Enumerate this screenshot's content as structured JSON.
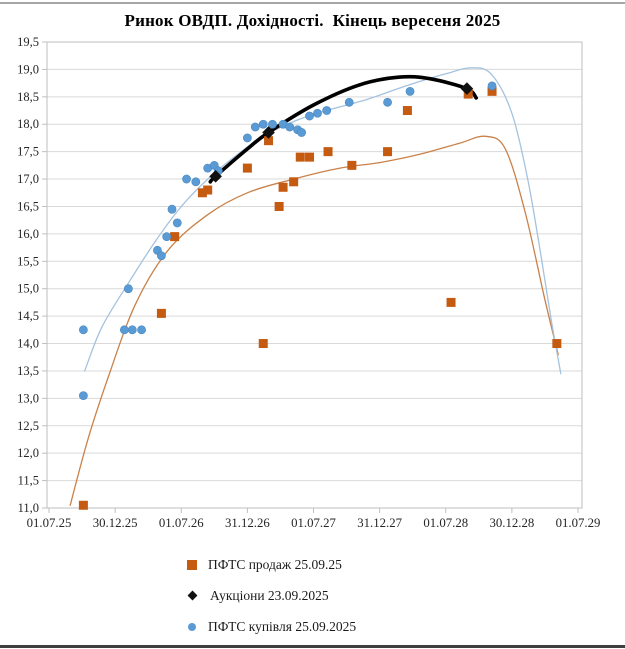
{
  "chart_data": {
    "type": "scatter",
    "title": "Ринок ОВДП. Дохідності.  Кінець вересеня 2025",
    "grid": "horizontal",
    "legend_position": "bottom-left",
    "x_axis": {
      "kind": "date",
      "tick_labels": [
        "01.07.25",
        "30.12.25",
        "01.07.26",
        "31.12.26",
        "01.07.27",
        "31.12.27",
        "01.07.28",
        "30.12.28",
        "01.07.29"
      ],
      "range_years": [
        2025.5,
        2029.5
      ]
    },
    "y_axis": {
      "min": 11.0,
      "max": 19.5,
      "step": 0.5,
      "tick_labels": [
        "19,5",
        "19,0",
        "18,5",
        "18,0",
        "17,5",
        "17,0",
        "16,5",
        "16,0",
        "15,5",
        "15,0",
        "14,5",
        "14,0",
        "13,5",
        "13,0",
        "12,5",
        "12,0",
        "11,5",
        "11,0"
      ]
    },
    "series": [
      {
        "name": "ПФТС  продаж 25.09.25",
        "marker": "square",
        "color": "#C55A11",
        "points": [
          [
            2025.76,
            11.05
          ],
          [
            2026.35,
            14.55
          ],
          [
            2026.45,
            15.95
          ],
          [
            2026.66,
            16.75
          ],
          [
            2026.7,
            16.8
          ],
          [
            2027.0,
            17.2
          ],
          [
            2027.12,
            14.0
          ],
          [
            2027.16,
            17.7
          ],
          [
            2027.24,
            16.5
          ],
          [
            2027.27,
            16.85
          ],
          [
            2027.35,
            16.95
          ],
          [
            2027.4,
            17.4
          ],
          [
            2027.47,
            17.4
          ],
          [
            2027.61,
            17.5
          ],
          [
            2027.79,
            17.25
          ],
          [
            2028.06,
            17.5
          ],
          [
            2028.21,
            18.25
          ],
          [
            2028.54,
            14.75
          ],
          [
            2028.67,
            18.55
          ],
          [
            2028.85,
            18.6
          ],
          [
            2029.34,
            14.0
          ]
        ]
      },
      {
        "name": "Аукціони 23.09.2025",
        "marker": "diamond",
        "color": "#111111",
        "points": [
          [
            2026.76,
            17.05
          ],
          [
            2027.16,
            17.85
          ],
          [
            2028.66,
            18.65
          ]
        ]
      },
      {
        "name": "ПФТС  купівля 25.09.2025",
        "marker": "circle",
        "color": "#5B9BD5",
        "points": [
          [
            2025.76,
            13.05
          ],
          [
            2025.76,
            14.25
          ],
          [
            2026.07,
            14.25
          ],
          [
            2026.1,
            15.0
          ],
          [
            2026.13,
            14.25
          ],
          [
            2026.2,
            14.25
          ],
          [
            2026.32,
            15.7
          ],
          [
            2026.35,
            15.6
          ],
          [
            2026.39,
            15.95
          ],
          [
            2026.43,
            16.45
          ],
          [
            2026.47,
            16.2
          ],
          [
            2026.54,
            17.0
          ],
          [
            2026.61,
            16.95
          ],
          [
            2026.7,
            17.2
          ],
          [
            2026.75,
            17.25
          ],
          [
            2026.78,
            17.15
          ],
          [
            2027.0,
            17.75
          ],
          [
            2027.06,
            17.95
          ],
          [
            2027.12,
            18.0
          ],
          [
            2027.19,
            18.0
          ],
          [
            2027.27,
            18.0
          ],
          [
            2027.32,
            17.95
          ],
          [
            2027.38,
            17.9
          ],
          [
            2027.41,
            17.85
          ],
          [
            2027.47,
            18.15
          ],
          [
            2027.53,
            18.2
          ],
          [
            2027.6,
            18.25
          ],
          [
            2027.77,
            18.4
          ],
          [
            2028.06,
            18.4
          ],
          [
            2028.23,
            18.6
          ],
          [
            2028.85,
            18.7
          ]
        ]
      }
    ],
    "trend_lines": [
      {
        "series": "ПФТС продаж 25.09.25",
        "color": "#C98149",
        "width": 1.3,
        "points": [
          [
            2025.66,
            11.05
          ],
          [
            2025.8,
            12.3
          ],
          [
            2025.95,
            13.4
          ],
          [
            2026.15,
            14.7
          ],
          [
            2026.4,
            15.7
          ],
          [
            2026.7,
            16.35
          ],
          [
            2027.0,
            16.75
          ],
          [
            2027.35,
            17.0
          ],
          [
            2027.7,
            17.2
          ],
          [
            2028.0,
            17.3
          ],
          [
            2028.3,
            17.45
          ],
          [
            2028.6,
            17.65
          ],
          [
            2028.8,
            17.78
          ],
          [
            2028.95,
            17.55
          ],
          [
            2029.1,
            16.4
          ],
          [
            2029.25,
            14.8
          ],
          [
            2029.35,
            13.8
          ]
        ]
      },
      {
        "series": "ПФТС купівля 25.09.2025",
        "color": "#A5C2DE",
        "width": 1.3,
        "points": [
          [
            2025.77,
            13.5
          ],
          [
            2025.9,
            14.3
          ],
          [
            2026.1,
            15.1
          ],
          [
            2026.3,
            15.85
          ],
          [
            2026.5,
            16.5
          ],
          [
            2026.7,
            17.0
          ],
          [
            2026.9,
            17.4
          ],
          [
            2027.1,
            17.75
          ],
          [
            2027.35,
            18.05
          ],
          [
            2027.6,
            18.25
          ],
          [
            2027.9,
            18.45
          ],
          [
            2028.2,
            18.7
          ],
          [
            2028.5,
            18.92
          ],
          [
            2028.7,
            19.03
          ],
          [
            2028.85,
            18.9
          ],
          [
            2029.0,
            18.2
          ],
          [
            2029.12,
            17.0
          ],
          [
            2029.22,
            15.6
          ],
          [
            2029.3,
            14.4
          ],
          [
            2029.37,
            13.45
          ]
        ]
      },
      {
        "series": "Аукціони 23.09.2025",
        "color": "#000000",
        "width": 3.6,
        "points": [
          [
            2026.72,
            16.95
          ],
          [
            2026.76,
            17.05
          ],
          [
            2027.0,
            17.55
          ],
          [
            2027.16,
            17.85
          ],
          [
            2027.5,
            18.35
          ],
          [
            2027.85,
            18.72
          ],
          [
            2028.15,
            18.86
          ],
          [
            2028.38,
            18.83
          ],
          [
            2028.66,
            18.65
          ],
          [
            2028.73,
            18.48
          ]
        ]
      }
    ],
    "colors": {
      "gridline": "#D9D9D9",
      "axis": "#BFBFBF",
      "tick_text": "#262626"
    }
  }
}
